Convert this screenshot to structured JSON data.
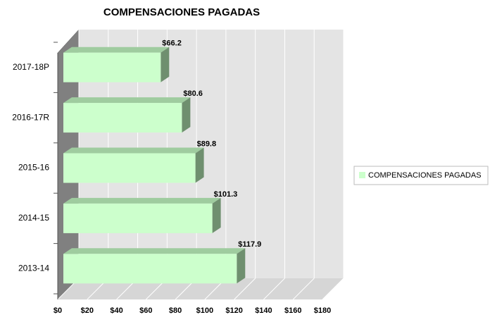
{
  "chart_data": {
    "type": "bar",
    "orientation": "horizontal",
    "title": "COMPENSACIONES PAGADAS",
    "categories": [
      "2013-14",
      "2014-15",
      "2015-16",
      "2016-17R",
      "2017-18P"
    ],
    "series": [
      {
        "name": "COMPENSACIONES PAGADAS",
        "color": "#ccffcc",
        "values": [
          117.9,
          101.3,
          89.8,
          80.6,
          66.2
        ],
        "value_labels": [
          "$117.9",
          "$101.3",
          "$89.8",
          "$80.6",
          "$66.2"
        ]
      }
    ],
    "xlim": [
      0,
      180
    ],
    "xticks": [
      {
        "value": 0,
        "label": "$0"
      },
      {
        "value": 20,
        "label": "$20"
      },
      {
        "value": 40,
        "label": "$40"
      },
      {
        "value": 60,
        "label": "$60"
      },
      {
        "value": 80,
        "label": "$80"
      },
      {
        "value": 100,
        "label": "$100"
      },
      {
        "value": 120,
        "label": "$120"
      },
      {
        "value": 140,
        "label": "$140"
      },
      {
        "value": 160,
        "label": "$160"
      },
      {
        "value": 180,
        "label": "$180"
      }
    ],
    "grid": true,
    "legend": "right"
  }
}
